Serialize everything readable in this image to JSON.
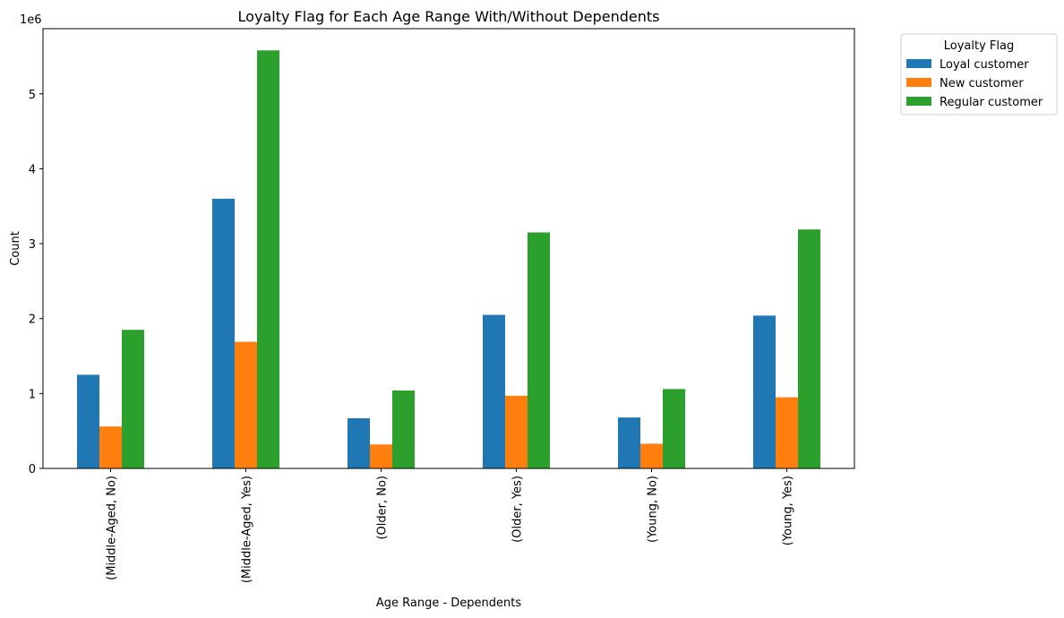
{
  "chart_data": {
    "type": "bar",
    "title": "Loyalty Flag for Each Age Range With/Without Dependents",
    "xlabel": "Age Range - Dependents",
    "ylabel": "Count",
    "y_offset_label": "1e6",
    "ylim": [
      0,
      5.87
    ],
    "y_ticks": [
      0,
      1,
      2,
      3,
      4,
      5
    ],
    "y_scale_note": "values in millions (1e6)",
    "grid": false,
    "legend_position": "outside-top-right",
    "legend_title": "Loyalty Flag",
    "categories": [
      "(Middle-Aged, No)",
      "(Middle-Aged, Yes)",
      "(Older, No)",
      "(Older, Yes)",
      "(Young, No)",
      "(Young, Yes)"
    ],
    "series": [
      {
        "name": "Loyal customer",
        "color": "#1f77b4",
        "values": [
          1.25,
          3.6,
          0.67,
          2.05,
          0.68,
          2.04
        ]
      },
      {
        "name": "New customer",
        "color": "#ff7f0e",
        "values": [
          0.56,
          1.69,
          0.32,
          0.97,
          0.33,
          0.95
        ]
      },
      {
        "name": "Regular customer",
        "color": "#2ca02c",
        "values": [
          1.85,
          5.58,
          1.04,
          3.15,
          1.06,
          3.19
        ]
      }
    ]
  }
}
